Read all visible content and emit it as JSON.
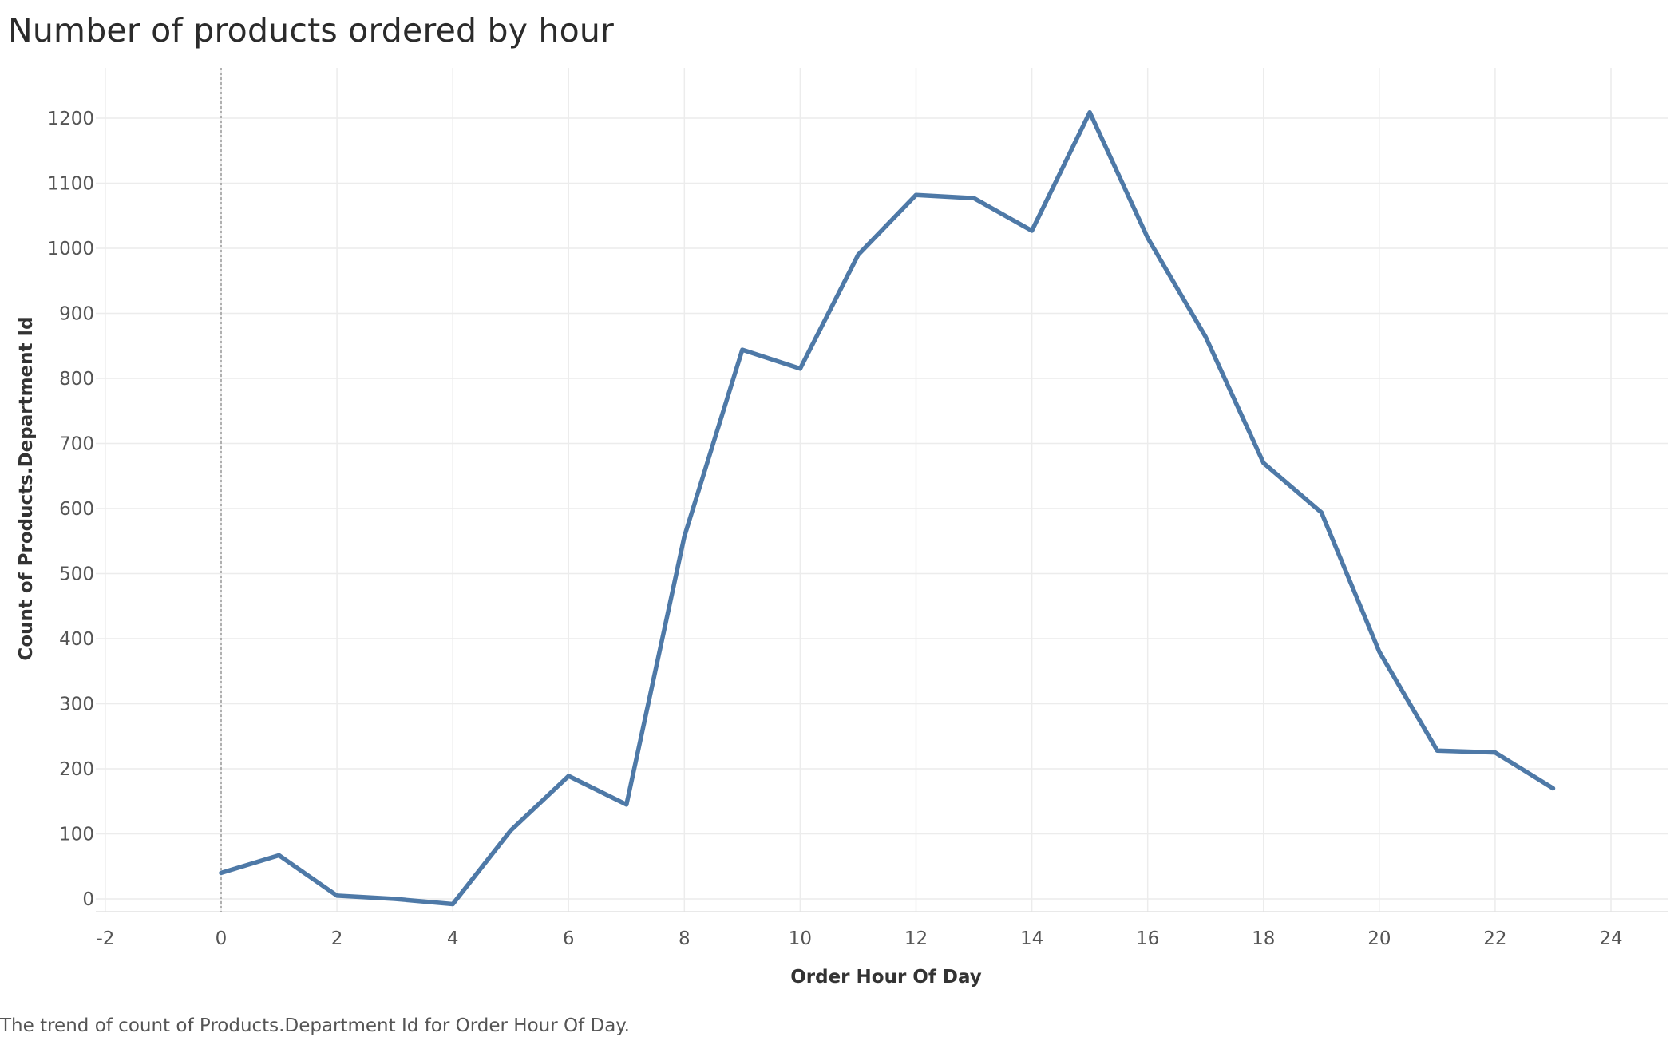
{
  "title": "Number of products ordered by hour",
  "caption": "The trend of count of Products.Department Id for Order Hour Of Day.",
  "chart_data": {
    "type": "line",
    "title": "Number of products ordered by hour",
    "xlabel": "Order Hour Of Day",
    "ylabel": "Count of Products.Department Id",
    "xlim": [
      -2,
      24
    ],
    "ylim": [
      0,
      1200
    ],
    "xticks": [
      -2,
      0,
      2,
      4,
      6,
      8,
      10,
      12,
      14,
      16,
      18,
      20,
      22,
      24
    ],
    "yticks": [
      0,
      100,
      200,
      300,
      400,
      500,
      600,
      700,
      800,
      900,
      1000,
      1100,
      1200
    ],
    "grid": true,
    "line_color": "#4e79a7",
    "x": [
      0,
      1,
      2,
      3,
      4,
      5,
      6,
      7,
      8,
      9,
      10,
      11,
      12,
      13,
      14,
      15,
      16,
      17,
      18,
      19,
      20,
      21,
      22,
      23
    ],
    "values": [
      40,
      67,
      5,
      0,
      -8,
      105,
      189,
      145,
      557,
      844,
      815,
      990,
      1082,
      1077,
      1027,
      1209,
      1016,
      864,
      670,
      594,
      380,
      228,
      225,
      170
    ]
  }
}
